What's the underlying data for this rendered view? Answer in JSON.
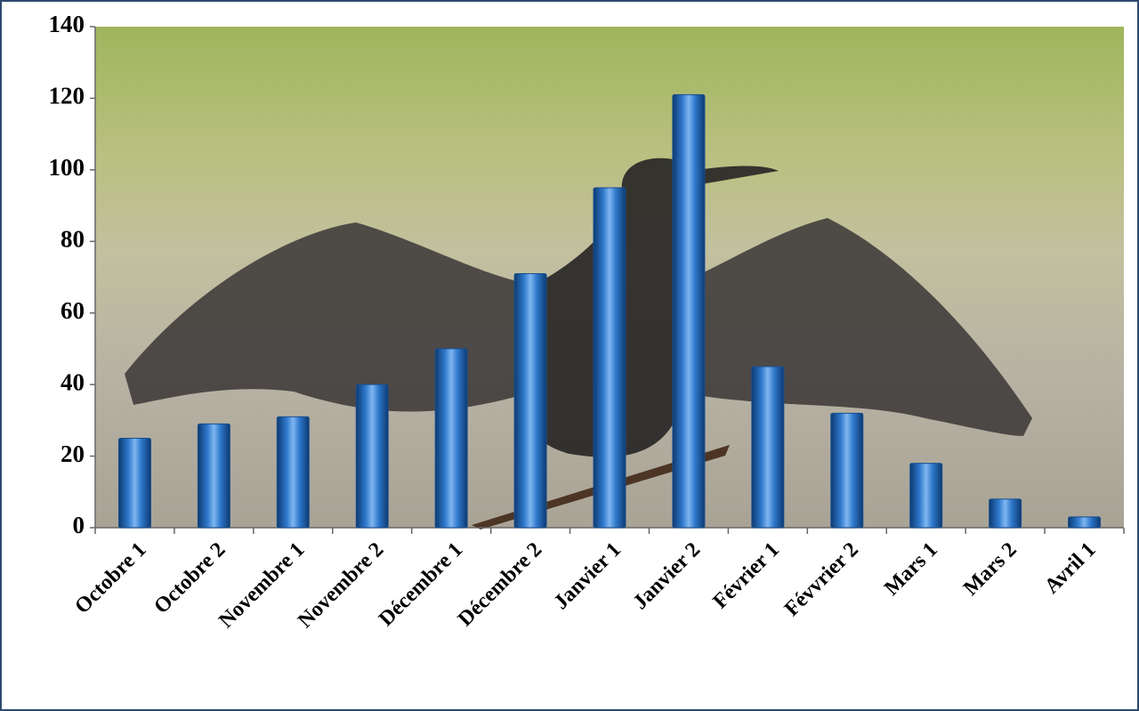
{
  "chart_data": {
    "type": "bar",
    "categories": [
      "Octobre 1",
      "Octobre 2",
      "Novembre 1",
      "Novembre 2",
      "Décembre 1",
      "Décembre 2",
      "Janvier 1",
      "Janvier 2",
      "Février 1",
      "Févvrier 2",
      "Mars 1",
      "Mars 2",
      "Avril 1"
    ],
    "values": [
      25,
      29,
      31,
      40,
      50,
      71,
      95,
      121,
      45,
      32,
      18,
      8,
      3
    ],
    "color": "#2f78cc",
    "ylim": [
      0,
      140
    ],
    "yticks": [
      0,
      20,
      40,
      60,
      80,
      100,
      120,
      140
    ],
    "grid": false
  }
}
